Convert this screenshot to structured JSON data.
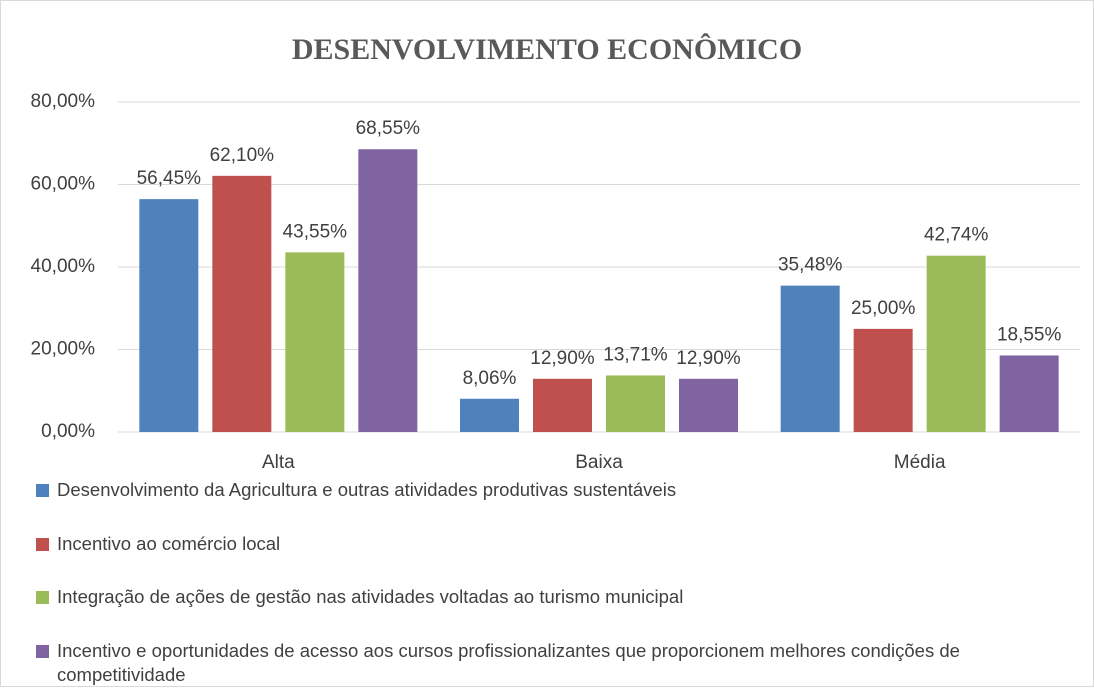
{
  "chart_data": {
    "type": "bar",
    "title": "DESENVOLVIMENTO ECONÔMICO",
    "categories": [
      "Alta",
      "Baixa",
      "Média"
    ],
    "series": [
      {
        "name": "Desenvolvimento da Agricultura e outras atividades produtivas sustentáveis",
        "color": "#4f81bd",
        "values": [
          56.45,
          8.06,
          35.48
        ],
        "value_labels": [
          "56,45%",
          "8,06%",
          "35,48%"
        ]
      },
      {
        "name": "Incentivo ao comércio local",
        "color": "#c0504d",
        "values": [
          62.1,
          12.9,
          25.0
        ],
        "value_labels": [
          "62,10%",
          "12,90%",
          "25,00%"
        ]
      },
      {
        "name": "Integração de ações de gestão nas atividades voltadas ao turismo municipal",
        "color": "#9bbb59",
        "values": [
          43.55,
          13.71,
          42.74
        ],
        "value_labels": [
          "43,55%",
          "13,71%",
          "42,74%"
        ]
      },
      {
        "name": "Incentivo e oportunidades de acesso aos cursos profissionalizantes que proporcionem melhores condições de competitividade",
        "color": "#8064a2",
        "values": [
          68.55,
          12.9,
          18.55
        ],
        "value_labels": [
          "68,55%",
          "12,90%",
          "18,55%"
        ]
      }
    ],
    "ylim": [
      0,
      80
    ],
    "yticks": [
      {
        "value": 0,
        "label": "0,00%"
      },
      {
        "value": 20,
        "label": "20,00%"
      },
      {
        "value": 40,
        "label": "40,00%"
      },
      {
        "value": 60,
        "label": "60,00%"
      },
      {
        "value": 80,
        "label": "80,00%"
      }
    ],
    "grid": true,
    "legend": "bottom"
  }
}
